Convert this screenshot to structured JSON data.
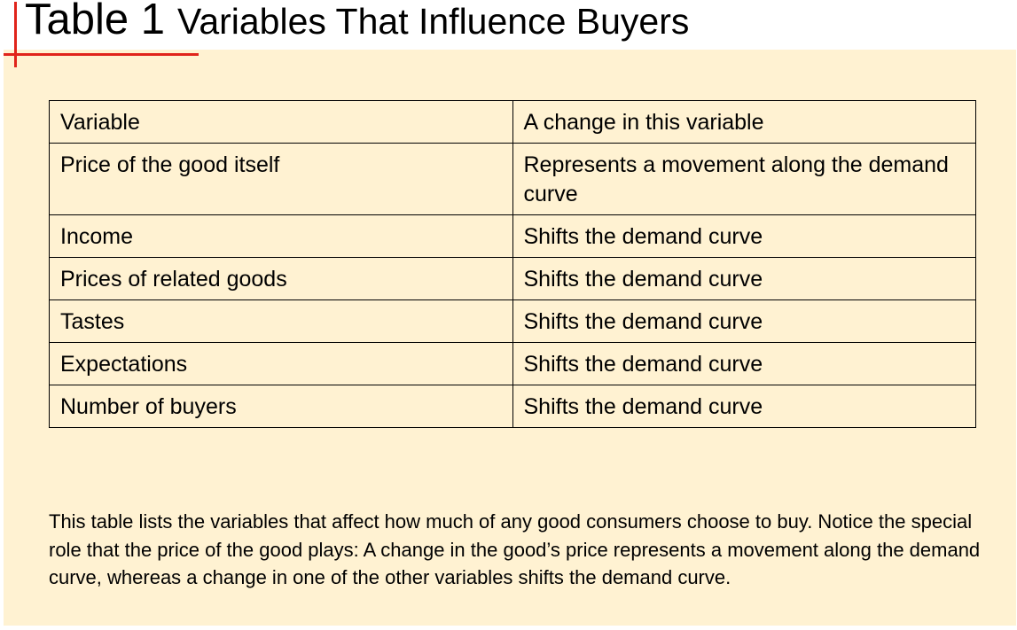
{
  "title": {
    "number": "Table 1",
    "text": "Variables That Influence Buyers"
  },
  "table": {
    "headers": [
      "Variable",
      "A change in this variable"
    ],
    "rows": [
      [
        "Price of the good itself",
        "Represents a movement along the demand curve"
      ],
      [
        "Income",
        "Shifts the demand curve"
      ],
      [
        "Prices of related goods",
        "Shifts the demand curve"
      ],
      [
        "Tastes",
        "Shifts the demand curve"
      ],
      [
        "Expectations",
        "Shifts the demand curve"
      ],
      [
        "Number of buyers",
        "Shifts the demand curve"
      ]
    ]
  },
  "caption": "This table lists the variables that affect how much of any good consumers choose to buy. Notice the special role that the price of the good plays: A change in the good’s price represents a movement along the demand curve, whereas a change in one of the other variables shifts the demand curve.",
  "colors": {
    "panel_background": "#fff2d2",
    "accent_red": "#e0241b"
  }
}
